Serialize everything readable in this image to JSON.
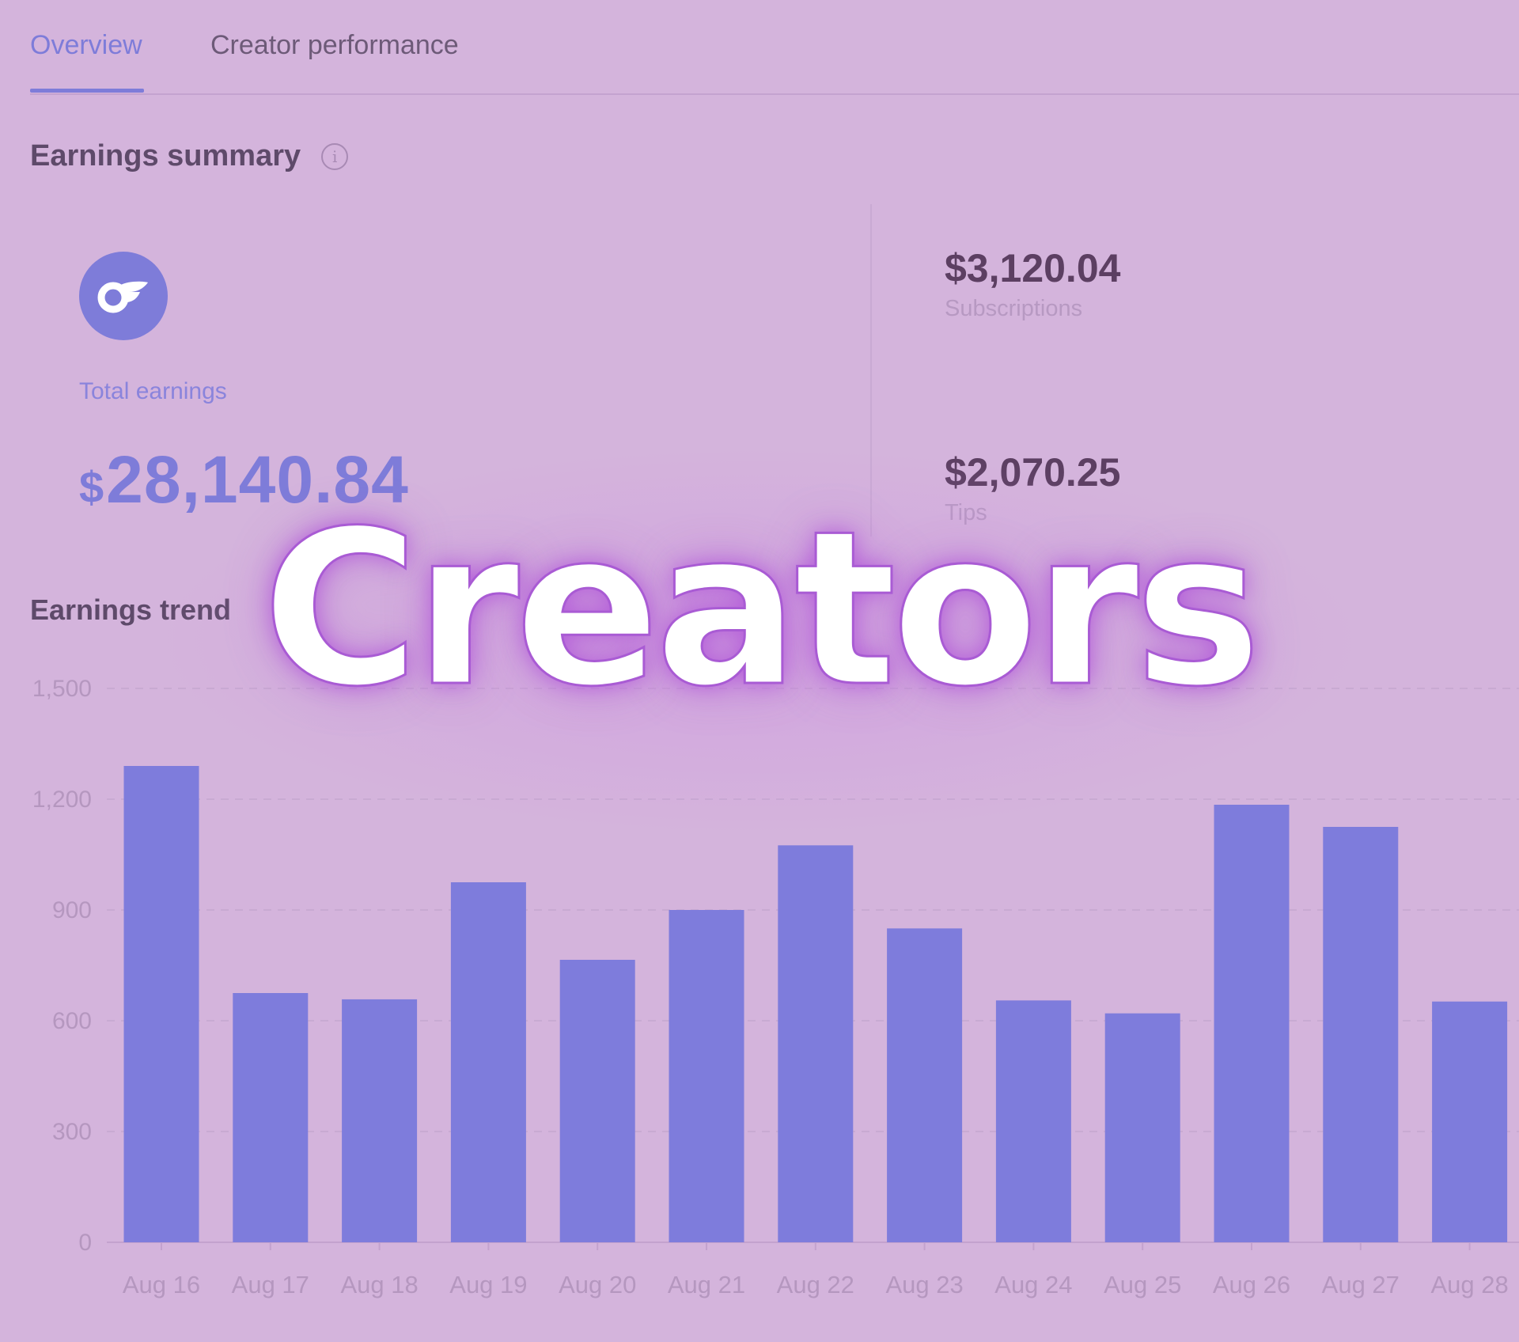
{
  "tabs": [
    {
      "label": "Overview",
      "active": true
    },
    {
      "label": "Creator performance",
      "active": false
    }
  ],
  "summary": {
    "title": "Earnings summary",
    "logo_icon": "onlyfans-logo-icon",
    "total_label": "Total earnings",
    "total_currency": "$",
    "total_amount": "28,140.84",
    "subscriptions_value": "$3,120.04",
    "subscriptions_label": "Subscriptions",
    "tips_value": "$2,070.25",
    "tips_label": "Tips"
  },
  "trend": {
    "title": "Earnings trend"
  },
  "overlay": {
    "text": "Creators"
  },
  "colors": {
    "background": "#d4b4dc",
    "accent": "#7e7cd9",
    "bar": "#7e7cdc",
    "overlay_stroke": "#a95bd4"
  },
  "chart_data": {
    "type": "bar",
    "categories": [
      "Aug 16",
      "Aug 17",
      "Aug 18",
      "Aug 19",
      "Aug 20",
      "Aug 21",
      "Aug 22",
      "Aug 23",
      "Aug 24",
      "Aug 25",
      "Aug 26",
      "Aug 27",
      "Aug 28"
    ],
    "values": [
      1290,
      675,
      658,
      975,
      765,
      900,
      1075,
      850,
      655,
      620,
      1185,
      1125,
      652
    ],
    "yticks": [
      "0",
      "300",
      "600",
      "900",
      "1,200",
      "1,500"
    ],
    "ytick_values": [
      0,
      300,
      600,
      900,
      1200,
      1500
    ],
    "ylim": [
      0,
      1500
    ],
    "grid": true
  }
}
